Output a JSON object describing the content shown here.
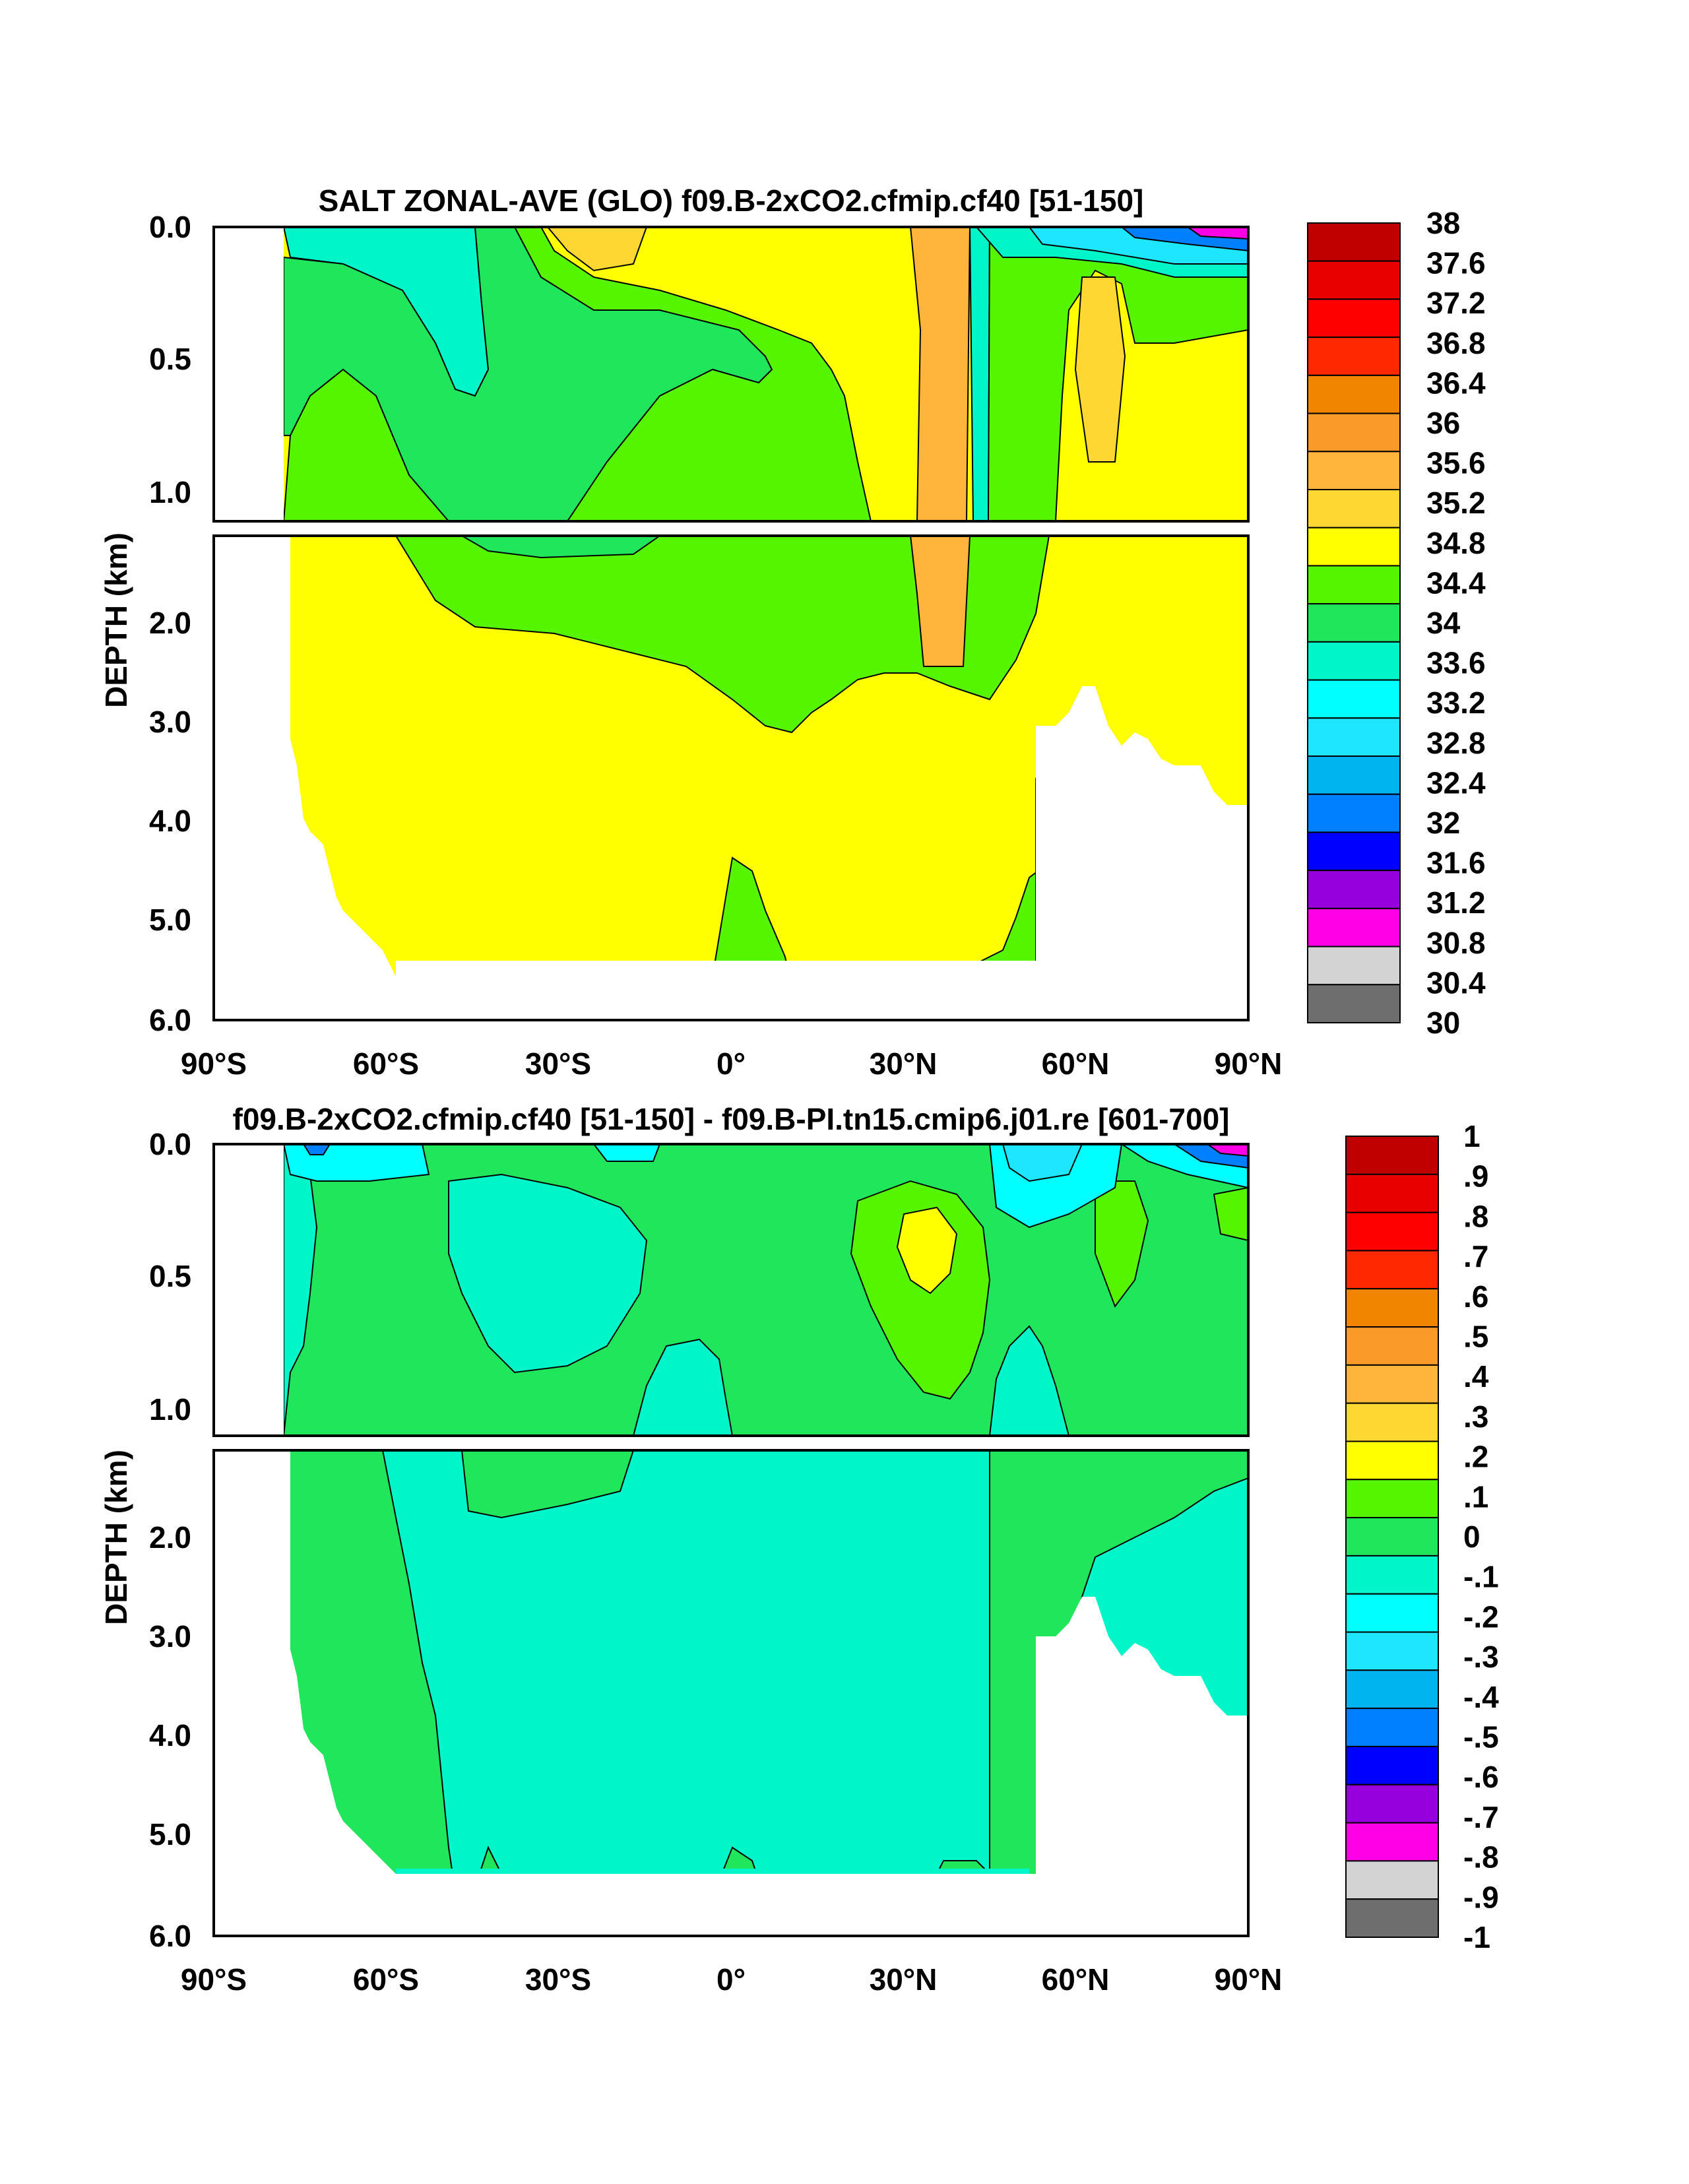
{
  "chart_data": [
    {
      "type": "heatmap",
      "title": "SALT ZONAL-AVE (GLO) f09.B-2xCO2.cfmip.cf40 [51-150]",
      "xlabel": "",
      "ylabel": "DEPTH (km)",
      "x_ticks": [
        "90°S",
        "60°S",
        "30°S",
        "0°",
        "30°N",
        "60°N",
        "90°N"
      ],
      "y_ticks_upper": [
        "0.0",
        "0.5",
        "1.0"
      ],
      "y_ticks_lower": [
        "2.0",
        "3.0",
        "4.0",
        "5.0",
        "6.0"
      ],
      "xlim": [
        -90,
        90
      ],
      "ylim": [
        0,
        6
      ],
      "colorbar_labels": [
        "38",
        "37.6",
        "37.2",
        "36.8",
        "36.4",
        "36",
        "35.6",
        "35.2",
        "34.8",
        "34.4",
        "34",
        "33.6",
        "33.2",
        "32.8",
        "32.4",
        "32",
        "31.6",
        "31.2",
        "30.8",
        "30.4",
        "30"
      ],
      "colors": [
        "#c00000",
        "#e80000",
        "#ff0000",
        "#ff2800",
        "#f28500",
        "#fa9a28",
        "#ffb43c",
        "#ffd732",
        "#ffff00",
        "#55f500",
        "#1fe65a",
        "#00f5c8",
        "#00ffff",
        "#1ee6ff",
        "#00b4f0",
        "#0080ff",
        "#0000ff",
        "#9600dc",
        "#ff00e6",
        "#d3d3d3",
        "#6e6e6e"
      ]
    },
    {
      "type": "heatmap",
      "title": "f09.B-2xCO2.cfmip.cf40 [51-150] - f09.B-PI.tn15.cmip6.j01.re [601-700]",
      "xlabel": "",
      "ylabel": "DEPTH (km)",
      "x_ticks": [
        "90°S",
        "60°S",
        "30°S",
        "0°",
        "30°N",
        "60°N",
        "90°N"
      ],
      "y_ticks_upper": [
        "0.0",
        "0.5",
        "1.0"
      ],
      "y_ticks_lower": [
        "2.0",
        "3.0",
        "4.0",
        "5.0",
        "6.0"
      ],
      "xlim": [
        -90,
        90
      ],
      "ylim": [
        0,
        6
      ],
      "colorbar_labels": [
        "1",
        ".9",
        ".8",
        ".7",
        ".6",
        ".5",
        ".4",
        ".3",
        ".2",
        ".1",
        "0",
        "-.1",
        "-.2",
        "-.3",
        "-.4",
        "-.5",
        "-.6",
        "-.7",
        "-.8",
        "-.9",
        "-1"
      ],
      "colors": [
        "#c00000",
        "#e80000",
        "#ff0000",
        "#ff2800",
        "#f28500",
        "#fa9a28",
        "#ffb43c",
        "#ffd732",
        "#ffff00",
        "#55f500",
        "#1fe65a",
        "#00f5c8",
        "#00ffff",
        "#1ee6ff",
        "#00b4f0",
        "#0080ff",
        "#0000ff",
        "#9600dc",
        "#ff00e6",
        "#d3d3d3",
        "#6e6e6e"
      ]
    }
  ]
}
